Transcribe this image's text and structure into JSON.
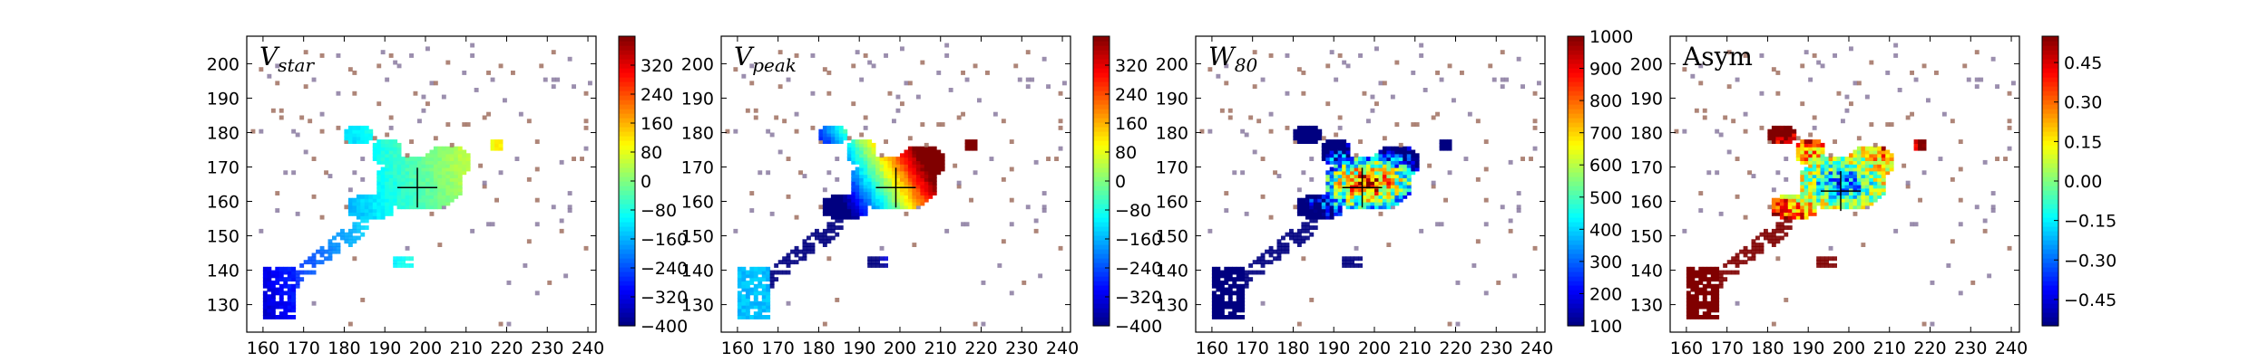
{
  "chart_data": [
    {
      "type": "heatmap",
      "title_main": "V",
      "title_sub": "star",
      "xlim": [
        156,
        242
      ],
      "ylim": [
        122,
        208
      ],
      "xticks": [
        160,
        170,
        180,
        190,
        200,
        210,
        220,
        230,
        240
      ],
      "yticks": [
        130,
        140,
        150,
        160,
        170,
        180,
        190,
        200
      ],
      "cbar_range": [
        -400,
        400
      ],
      "cbar_ticks": [
        -400,
        -320,
        -240,
        -160,
        -80,
        0,
        80,
        160,
        240,
        320
      ],
      "cbar_labels": [
        "−400",
        "−320",
        "−240",
        "−160",
        "−80",
        "0",
        "80",
        "160",
        "240",
        "320"
      ],
      "center_marker": [
        198,
        164
      ],
      "colormap": "jet",
      "pattern": "vstar"
    },
    {
      "type": "heatmap",
      "title_main": "V",
      "title_sub": "peak",
      "xlim": [
        156,
        242
      ],
      "ylim": [
        122,
        208
      ],
      "xticks": [
        160,
        170,
        180,
        190,
        200,
        210,
        220,
        230,
        240
      ],
      "yticks": [
        130,
        140,
        150,
        160,
        170,
        180,
        190,
        200
      ],
      "cbar_range": [
        -400,
        400
      ],
      "cbar_ticks": [
        -400,
        -320,
        -240,
        -160,
        -80,
        0,
        80,
        160,
        240,
        320
      ],
      "cbar_labels": [
        "−400",
        "−320",
        "−240",
        "−160",
        "−80",
        "0",
        "80",
        "160",
        "240",
        "320"
      ],
      "center_marker": [
        199,
        164
      ],
      "colormap": "jet",
      "pattern": "vpeak"
    },
    {
      "type": "heatmap",
      "title_main": "W",
      "title_sub": "80",
      "xlim": [
        156,
        242
      ],
      "ylim": [
        122,
        208
      ],
      "xticks": [
        160,
        170,
        180,
        190,
        200,
        210,
        220,
        230,
        240
      ],
      "yticks": [
        130,
        140,
        150,
        160,
        170,
        180,
        190,
        200
      ],
      "cbar_range": [
        100,
        1000
      ],
      "cbar_ticks": [
        100,
        200,
        300,
        400,
        500,
        600,
        700,
        800,
        900,
        1000
      ],
      "cbar_labels": [
        "100",
        "200",
        "300",
        "400",
        "500",
        "600",
        "700",
        "800",
        "900",
        "1000"
      ],
      "center_marker": [
        197,
        164
      ],
      "colormap": "jet",
      "pattern": "w80"
    },
    {
      "type": "heatmap",
      "title_main": "Asym",
      "title_sub": "",
      "xlim": [
        156,
        242
      ],
      "ylim": [
        122,
        208
      ],
      "xticks": [
        160,
        170,
        180,
        190,
        200,
        210,
        220,
        230,
        240
      ],
      "yticks": [
        130,
        140,
        150,
        160,
        170,
        180,
        190,
        200
      ],
      "cbar_range": [
        -0.55,
        0.55
      ],
      "cbar_ticks": [
        -0.45,
        -0.3,
        -0.15,
        0,
        0.15,
        0.3,
        0.45
      ],
      "cbar_labels": [
        "−0.45",
        "−0.30",
        "−0.15",
        "0.00",
        "0.15",
        "0.30",
        "0.45"
      ],
      "center_marker": [
        198,
        163
      ],
      "colormap": "jet",
      "pattern": "asym"
    }
  ]
}
